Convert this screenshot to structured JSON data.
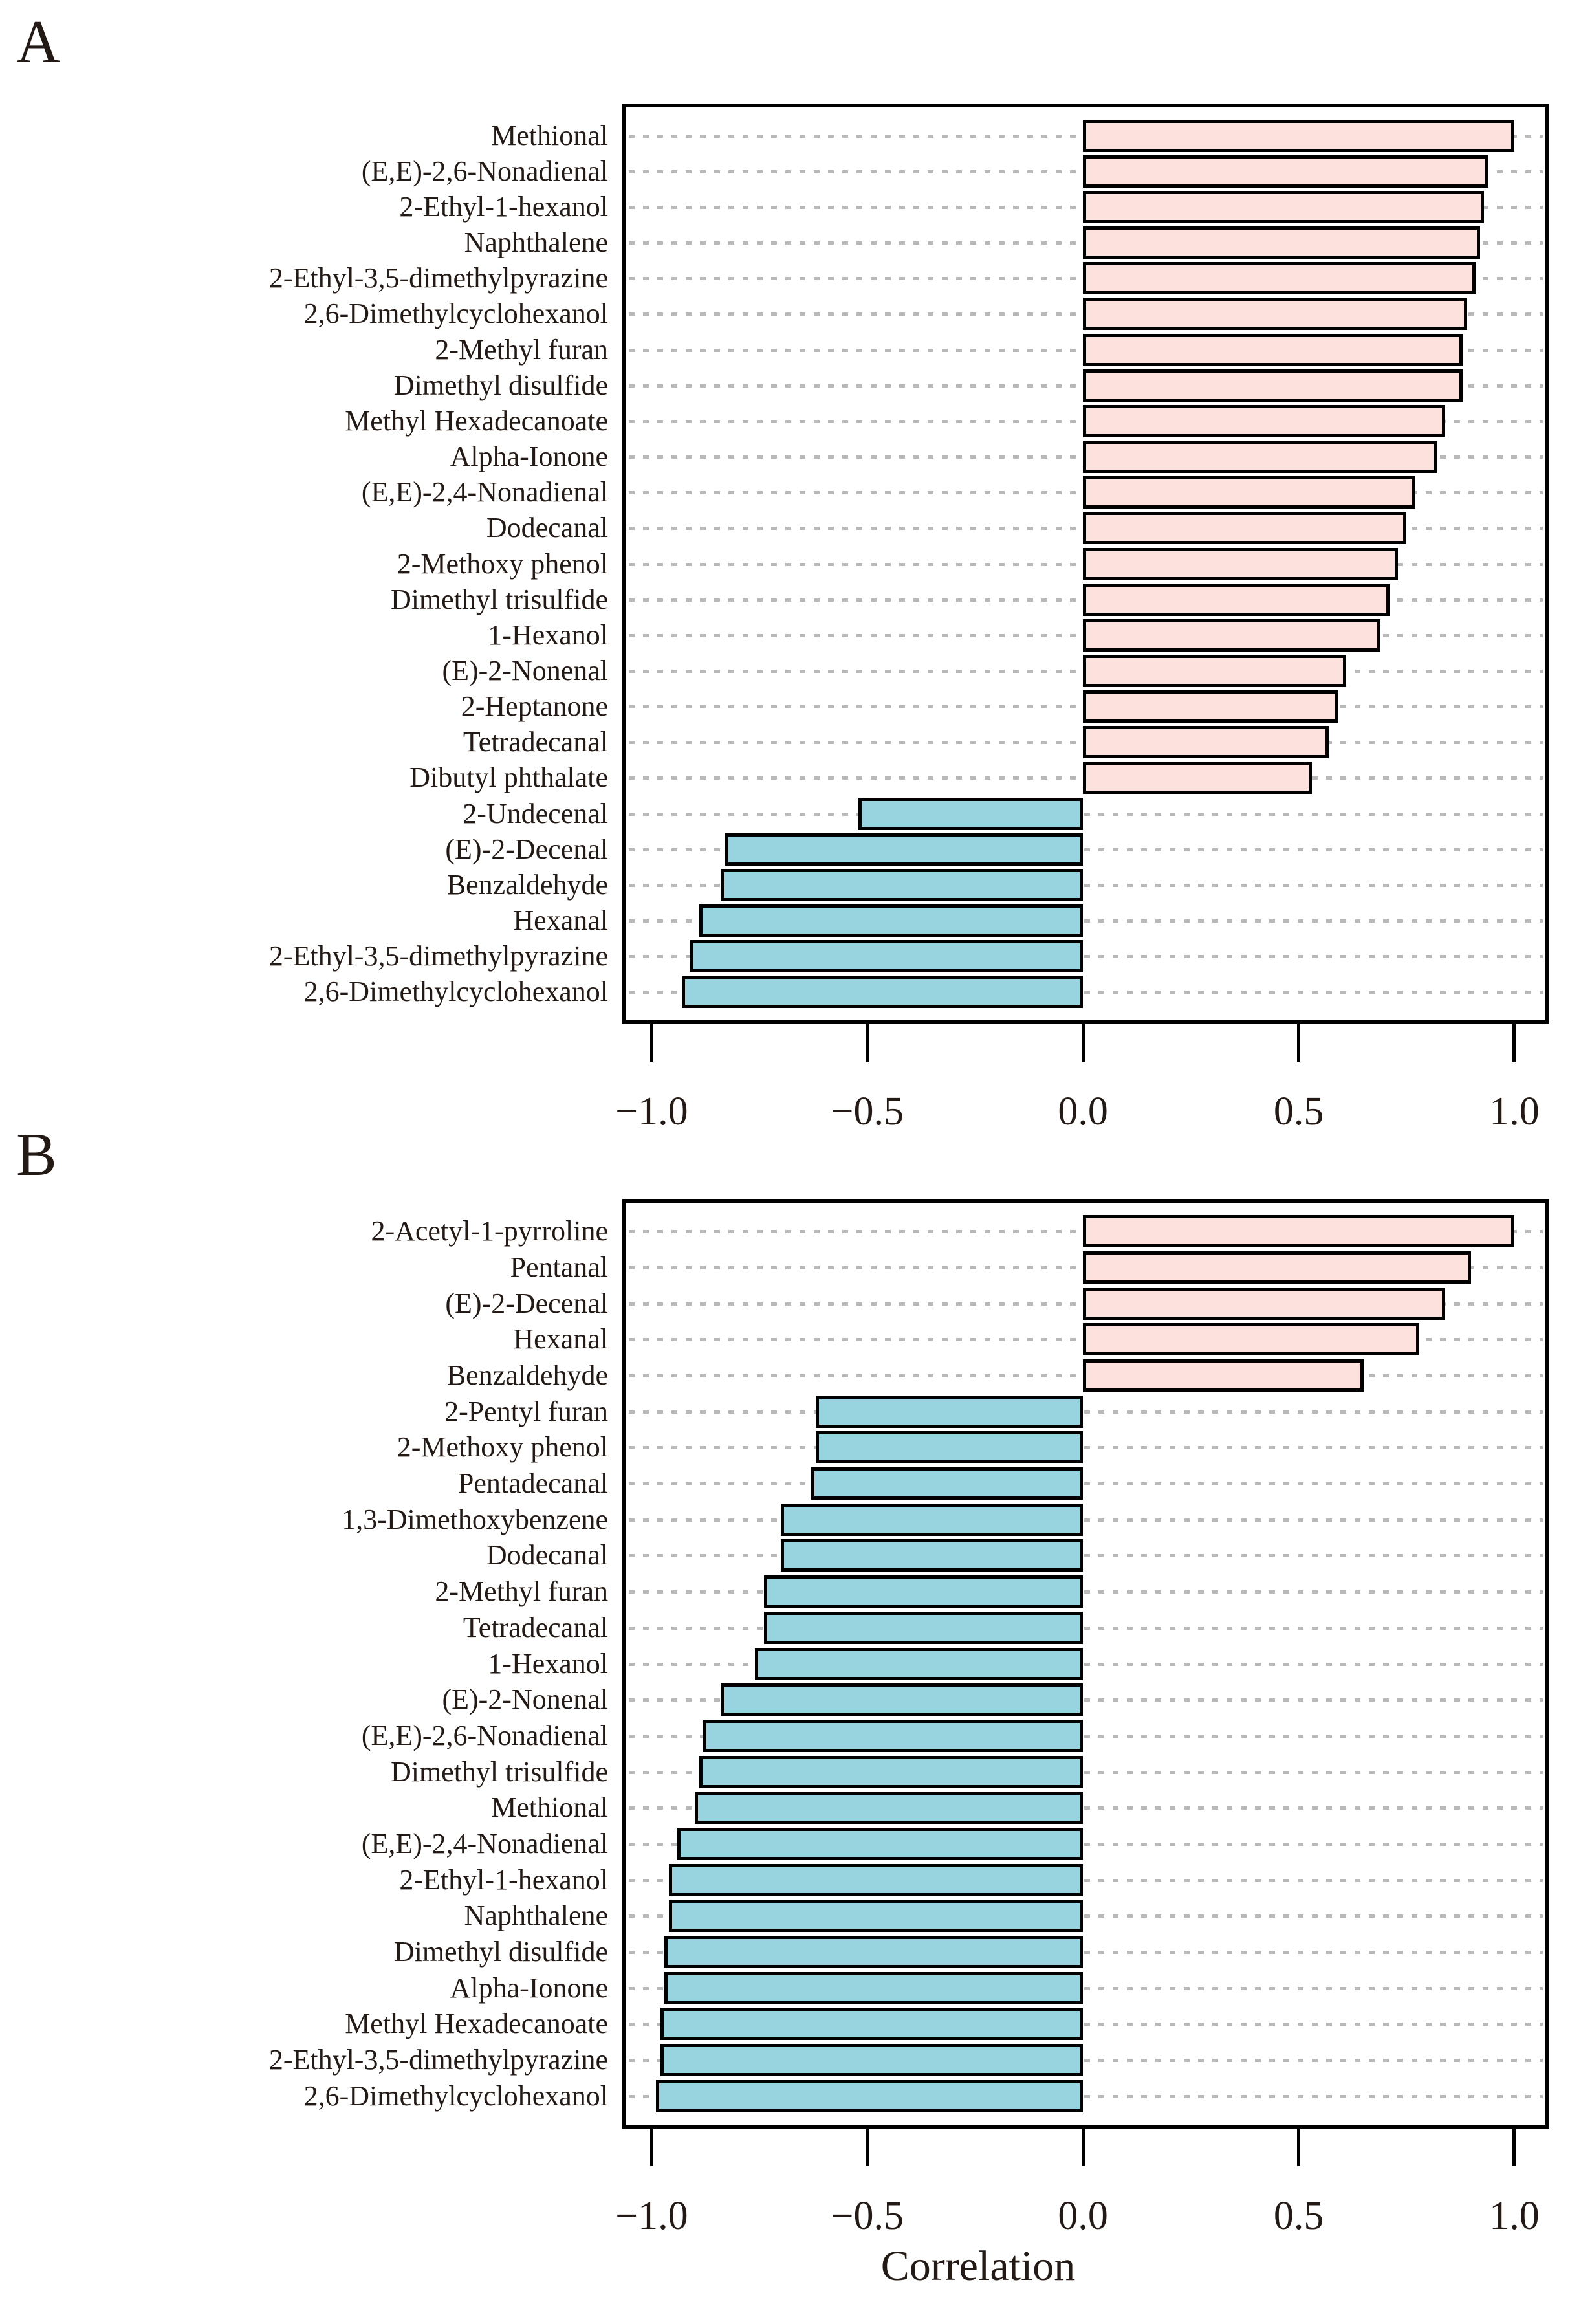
{
  "figure": {
    "panels": [
      {
        "letter": "A"
      },
      {
        "letter": "B"
      }
    ]
  },
  "chart_data": [
    {
      "type": "bar",
      "orientation": "horizontal",
      "panel": "A",
      "title": "",
      "xlabel": "",
      "ylabel": "",
      "categories": [
        "Methional",
        "(E,E)-2,6-Nonadienal",
        "2-Ethyl-1-hexanol",
        "Naphthalene",
        "2-Ethyl-3,5-dimethylpyrazine",
        "2,6-Dimethylcyclohexanol",
        "2-Methyl furan",
        "Dimethyl disulfide",
        "Methyl Hexadecanoate",
        "Alpha-Ionone",
        "(E,E)-2,4-Nonadienal",
        "Dodecanal",
        "2-Methoxy phenol",
        "Dimethyl trisulfide",
        "1-Hexanol",
        "(E)-2-Nonenal",
        "2-Heptanone",
        "Tetradecanal",
        "Dibutyl phthalate",
        "2-Undecenal",
        "(E)-2-Decenal",
        "Benzaldehyde",
        "Hexanal",
        "2-Ethyl-3,5-dimethylpyrazine",
        "2,6-Dimethylcyclohexanol"
      ],
      "values": [
        1.0,
        0.94,
        0.93,
        0.92,
        0.91,
        0.89,
        0.88,
        0.88,
        0.84,
        0.82,
        0.77,
        0.75,
        0.73,
        0.71,
        0.69,
        0.61,
        0.59,
        0.57,
        0.53,
        -0.52,
        -0.83,
        -0.84,
        -0.89,
        -0.91,
        -0.93
      ],
      "xlim": [
        -1.068,
        1.081
      ],
      "xticks": [
        -1.0,
        -0.5,
        0.0,
        0.5,
        1.0
      ],
      "xtick_labels": [
        "−1.0",
        "−0.5",
        "0.0",
        "0.5",
        "1.0"
      ],
      "grid": "dotted-horizontal-per-category",
      "positive_color": "#fce1dd",
      "negative_color": "#98d3e0",
      "bar_border_color": "#000000",
      "gridline_color": "#b9b9b9"
    },
    {
      "type": "bar",
      "orientation": "horizontal",
      "panel": "B",
      "title": "",
      "xlabel": "Correlation",
      "ylabel": "",
      "categories": [
        "2-Acetyl-1-pyrroline",
        "Pentanal",
        "(E)-2-Decenal",
        "Hexanal",
        "Benzaldehyde",
        "2-Pentyl furan",
        "2-Methoxy phenol",
        "Pentadecanal",
        "1,3-Dimethoxybenzene",
        "Dodecanal",
        "2-Methyl furan",
        "Tetradecanal",
        "1-Hexanol",
        "(E)-2-Nonenal",
        "(E,E)-2,6-Nonadienal",
        "Dimethyl trisulfide",
        "Methional",
        "(E,E)-2,4-Nonadienal",
        "2-Ethyl-1-hexanol",
        "Naphthalene",
        "Dimethyl disulfide",
        "Alpha-Ionone",
        "Methyl Hexadecanoate",
        "2-Ethyl-3,5-dimethylpyrazine",
        "2,6-Dimethylcyclohexanol"
      ],
      "values": [
        1.0,
        0.9,
        0.84,
        0.78,
        0.65,
        -0.62,
        -0.62,
        -0.63,
        -0.7,
        -0.7,
        -0.74,
        -0.74,
        -0.76,
        -0.84,
        -0.88,
        -0.89,
        -0.9,
        -0.94,
        -0.96,
        -0.96,
        -0.97,
        -0.97,
        -0.98,
        -0.98,
        -0.99
      ],
      "xlim": [
        -1.068,
        1.081
      ],
      "xticks": [
        -1.0,
        -0.5,
        0.0,
        0.5,
        1.0
      ],
      "xtick_labels": [
        "−1.0",
        "−0.5",
        "0.0",
        "0.5",
        "1.0"
      ],
      "grid": "dotted-horizontal-per-category",
      "positive_color": "#fce1dd",
      "negative_color": "#98d3e0",
      "bar_border_color": "#000000",
      "gridline_color": "#b9b9b9"
    }
  ]
}
